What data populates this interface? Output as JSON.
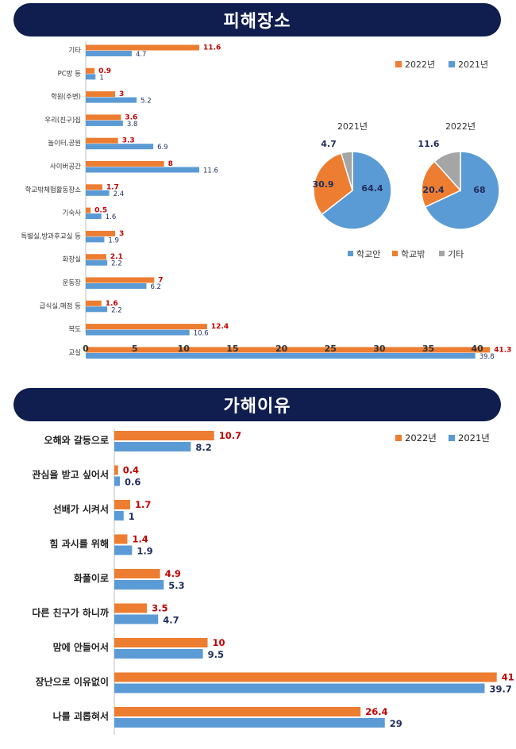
{
  "colors": {
    "banner": "#0f1d4f",
    "y2022": "#ed7d31",
    "y2021": "#5b9bd5",
    "other": "#a5a5a5",
    "label2022": "#c00000",
    "label2021": "#1f2d5c"
  },
  "section1": {
    "title": "피해장소"
  },
  "section2": {
    "title": "가해이유"
  },
  "chart_data": [
    {
      "type": "bar",
      "title": "피해장소",
      "categories": [
        "기타",
        "PC방 등",
        "학원(주변)",
        "우리(친구)집",
        "놀이터,공원",
        "사이버공간",
        "학교밖체험활동장소",
        "기숙사",
        "특별실,방과후교실 등",
        "화장실",
        "운동장",
        "급식실,매점 등",
        "복도",
        "교실"
      ],
      "series": [
        {
          "name": "2022년",
          "values": [
            11.6,
            0.9,
            3,
            3.6,
            3.3,
            8,
            1.7,
            0.5,
            3,
            2.1,
            7,
            1.6,
            12.4,
            41.3
          ]
        },
        {
          "name": "2021년",
          "values": [
            4.7,
            1,
            5.2,
            3.8,
            6.9,
            11.6,
            2.4,
            1.6,
            1.9,
            2.2,
            6.2,
            2.2,
            10.6,
            39.8
          ]
        }
      ],
      "xticks": [
        "0",
        "5",
        "10",
        "15",
        "20",
        "25",
        "30",
        "35",
        "40"
      ],
      "xlim": [
        0,
        42
      ],
      "legend": [
        "2022년",
        "2021년"
      ],
      "legend_position": "top-right"
    },
    {
      "type": "pie",
      "title": "2021년",
      "labels": [
        "학교안",
        "학교밖",
        "기타"
      ],
      "values": [
        64.4,
        30.9,
        4.7
      ]
    },
    {
      "type": "pie",
      "title": "2022년",
      "labels": [
        "학교안",
        "학교밖",
        "기타"
      ],
      "values": [
        68,
        20.4,
        11.6
      ]
    },
    {
      "type": "bar",
      "title": "가해이유",
      "categories": [
        "오해와 갈등으로",
        "관심을 받고 싶어서",
        "선배가 시켜서",
        "힘 과시를 위해",
        "화풀이로",
        "다른 친구가 하니까",
        "맘에 안들어서",
        "장난으로 이유없이",
        "나를 괴롭혀서"
      ],
      "series": [
        {
          "name": "2022년",
          "values": [
            10.7,
            0.4,
            1.7,
            1.4,
            4.9,
            3.5,
            10,
            41,
            26.4
          ]
        },
        {
          "name": "2021년",
          "values": [
            8.2,
            0.6,
            1,
            1.9,
            5.3,
            4.7,
            9.5,
            39.7,
            29
          ]
        }
      ],
      "legend": [
        "2022년",
        "2021년"
      ],
      "legend_position": "top-right"
    }
  ]
}
